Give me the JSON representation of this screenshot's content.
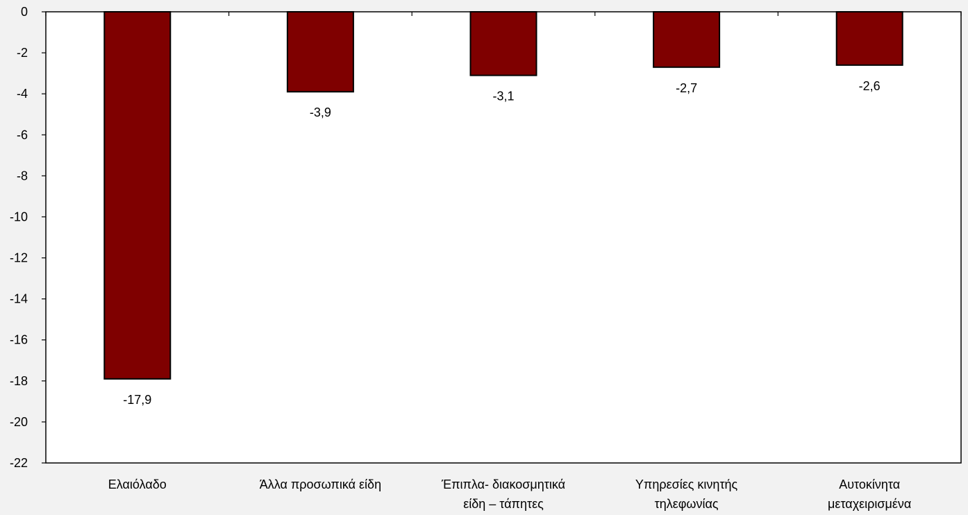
{
  "chart_data": {
    "type": "bar",
    "categories": [
      [
        "Ελαιόλαδο"
      ],
      [
        "Άλλα προσωπικά είδη"
      ],
      [
        "Έπιπλα- διακοσμητικά",
        "είδη – τάπητες"
      ],
      [
        "Υπηρεσίες κινητής",
        "τηλεφωνίας"
      ],
      [
        "Αυτοκίνητα",
        "μεταχειρισμένα"
      ]
    ],
    "values": [
      -17.9,
      -3.9,
      -3.1,
      -2.7,
      -2.6
    ],
    "data_labels": [
      "-17,9",
      "-3,9",
      "-3,1",
      "-2,7",
      "-2,6"
    ],
    "ylim": [
      -22,
      0
    ],
    "yticks": [
      0,
      -2,
      -4,
      -6,
      -8,
      -10,
      -12,
      -14,
      -16,
      -18,
      -20,
      -22
    ],
    "ytick_labels": [
      "0",
      "-2",
      "-4",
      "-6",
      "-8",
      "-10",
      "-12",
      "-14",
      "-16",
      "-18",
      "-20",
      "-22"
    ],
    "grid": false,
    "bar_color": "#7f0000",
    "bar_edge_color": "#000000",
    "plot_background": "#ffffff",
    "page_background": "#f2f2f2"
  }
}
